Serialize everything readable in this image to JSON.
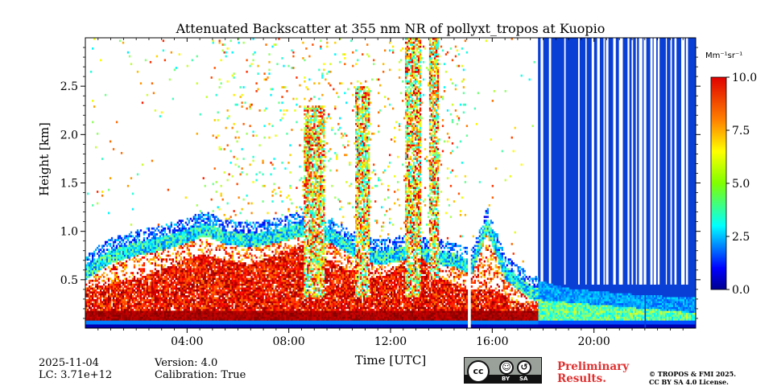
{
  "title": "Attenuated Backscatter at 355 nm NR of pollyxt_tropos at Kuopio",
  "chart_data": {
    "type": "heatmap",
    "title": "Attenuated Backscatter at 355 nm NR of pollyxt_tropos at Kuopio",
    "xlabel": "Time [UTC]",
    "ylabel": "Height [km]",
    "xlim": [
      0,
      24
    ],
    "ylim": [
      0,
      3.0
    ],
    "x_ticks": [
      4,
      8,
      12,
      16,
      20
    ],
    "x_tick_labels": [
      "04:00",
      "08:00",
      "12:00",
      "16:00",
      "20:00"
    ],
    "y_ticks": [
      0.5,
      1.0,
      1.5,
      2.0,
      2.5
    ],
    "y_tick_labels": [
      "0.5",
      "1.0",
      "1.5",
      "2.0",
      "2.5"
    ],
    "colorbar": {
      "label": "Mm⁻¹sr⁻¹",
      "range": [
        0.0,
        10.0
      ],
      "ticks": [
        0.0,
        2.5,
        5.0,
        7.5,
        10.0
      ],
      "tick_labels": [
        "0.0",
        "2.5",
        "5.0",
        "7.5",
        "10.0"
      ],
      "colormap": "jet"
    },
    "boundary_layer_top_km": [
      [
        0.0,
        0.55
      ],
      [
        1.0,
        0.72
      ],
      [
        2.0,
        0.8
      ],
      [
        3.0,
        0.85
      ],
      [
        4.0,
        0.93
      ],
      [
        4.7,
        1.0
      ],
      [
        5.5,
        0.92
      ],
      [
        6.5,
        0.88
      ],
      [
        7.5,
        0.93
      ],
      [
        8.5,
        1.0
      ],
      [
        9.5,
        0.95
      ],
      [
        10.5,
        0.8
      ],
      [
        11.5,
        0.7
      ],
      [
        12.5,
        0.75
      ],
      [
        13.5,
        0.72
      ],
      [
        14.5,
        0.68
      ],
      [
        15.2,
        0.6
      ],
      [
        15.8,
        1.05
      ],
      [
        16.5,
        0.55
      ],
      [
        17.5,
        0.35
      ],
      [
        19.0,
        0.25
      ],
      [
        21.0,
        0.2
      ],
      [
        22.0,
        0.18
      ],
      [
        24.0,
        0.15
      ]
    ],
    "aerosol_layer_top_km": [
      [
        0.0,
        0.4
      ],
      [
        1.0,
        0.45
      ],
      [
        2.0,
        0.5
      ],
      [
        3.0,
        0.6
      ],
      [
        4.5,
        0.75
      ],
      [
        5.5,
        0.7
      ],
      [
        6.5,
        0.65
      ],
      [
        7.5,
        0.75
      ],
      [
        8.5,
        0.85
      ],
      [
        9.5,
        0.7
      ],
      [
        11.0,
        0.5
      ],
      [
        12.0,
        0.55
      ],
      [
        13.0,
        0.8
      ],
      [
        14.0,
        0.5
      ],
      [
        15.0,
        0.4
      ],
      [
        16.0,
        0.4
      ],
      [
        17.0,
        0.25
      ],
      [
        24.0,
        0.1
      ]
    ],
    "near_surface_layer_km": [
      0.08,
      0.18
    ],
    "cloud_columns": [
      {
        "t_start": 8.6,
        "t_end": 9.4,
        "z_base_km": 0.3,
        "z_top_km": 2.3
      },
      {
        "t_start": 10.6,
        "t_end": 11.2,
        "z_base_km": 0.3,
        "z_top_km": 2.5
      },
      {
        "t_start": 12.6,
        "t_end": 13.2,
        "z_base_km": 0.3,
        "z_top_km": 3.0
      },
      {
        "t_start": 13.5,
        "t_end": 13.9,
        "z_base_km": 0.5,
        "z_top_km": 3.0
      }
    ],
    "data_gaps_hours": [
      [
        15.05,
        15.15
      ],
      [
        21.97,
        22.07
      ]
    ],
    "low_signal_period_hours": [
      17.8,
      24.0
    ]
  },
  "footer": {
    "date": "2025-11-04",
    "lc": "LC: 3.71e+12",
    "version": "Version: 4.0",
    "calibration": "Calibration: True",
    "license_badge": {
      "cc": "cc",
      "by": "BY",
      "sa": "SA"
    },
    "preliminary_line1": "Preliminary",
    "preliminary_line2": "Results.",
    "copyright_line1": "© TROPOS & FMI 2025.",
    "copyright_line2": "CC BY SA 4.0 License."
  },
  "colors": {
    "background": "#ffffff",
    "prelim_text": "#e03030",
    "low_signal_blue": "#0a3fd6"
  }
}
